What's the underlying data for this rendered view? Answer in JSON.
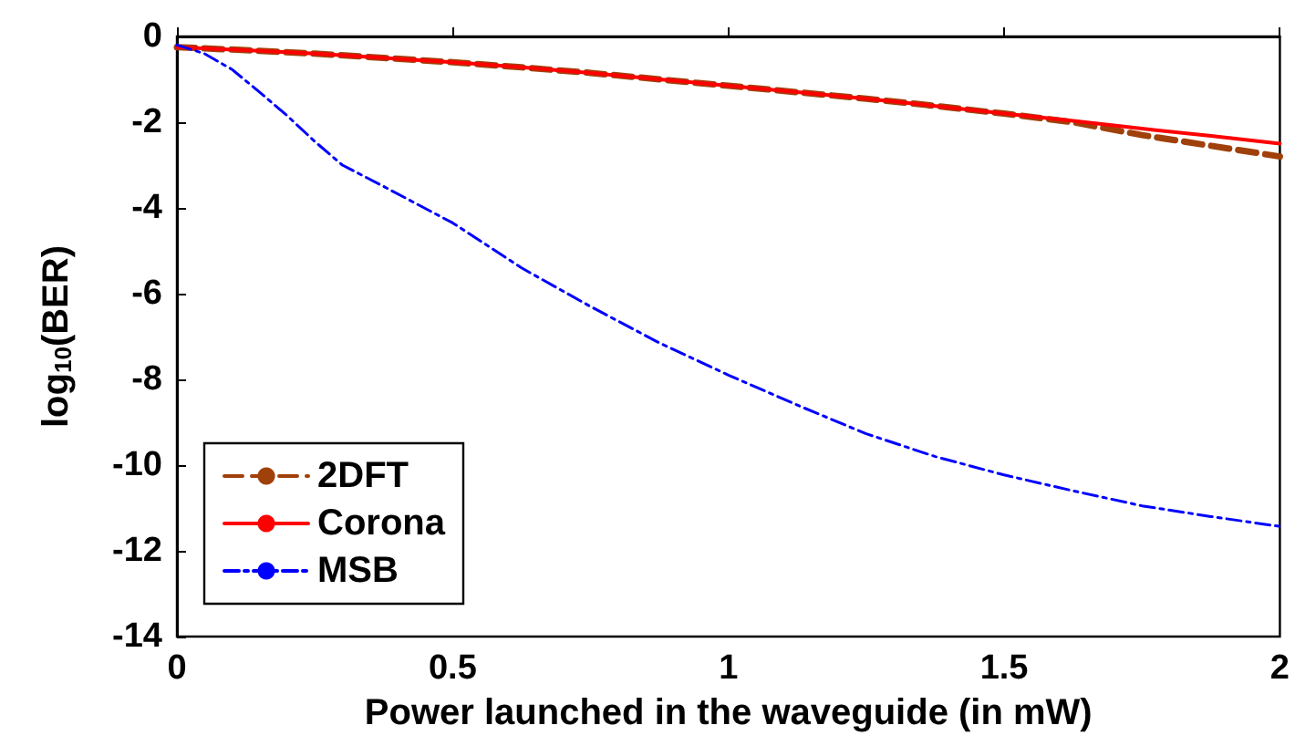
{
  "chart_data": {
    "type": "line",
    "xlabel": "Power launched in the waveguide (in mW)",
    "ylabel": "log$_{10}$(BER)",
    "x": [
      0,
      0.125,
      0.25,
      0.375,
      0.5,
      0.625,
      0.75,
      0.875,
      1,
      1.125,
      1.25,
      1.375,
      1.5,
      1.625,
      1.75,
      1.875,
      2
    ],
    "xlim": [
      0,
      2
    ],
    "xticks": [
      0,
      0.5,
      1,
      1.5,
      2
    ],
    "ylim": [
      -14,
      0
    ],
    "yticks": [
      -14,
      -12,
      -10,
      -8,
      -6,
      -4,
      -2,
      0
    ],
    "series": [
      {
        "name": "2DFT",
        "color": "#a0400a",
        "line_style": "dashed",
        "values": [
          -0.25,
          -0.32,
          -0.4,
          -0.5,
          -0.6,
          -0.72,
          -0.85,
          -1,
          -1.15,
          -1.3,
          -1.45,
          -1.62,
          -1.8,
          -2,
          -2.3,
          -2.55,
          -2.8
        ]
      },
      {
        "name": "Corona",
        "color": "#ff0000",
        "line_style": "solid",
        "values": [
          -0.25,
          -0.32,
          -0.4,
          -0.5,
          -0.6,
          -0.72,
          -0.85,
          -1,
          -1.15,
          -1.3,
          -1.45,
          -1.62,
          -1.8,
          -1.97,
          -2.15,
          -2.32,
          -2.5
        ]
      },
      {
        "name": "MSB",
        "color": "#0000ff",
        "line_style": "dotted",
        "x": [
          0,
          0.05,
          0.1,
          0.15,
          0.2,
          0.25,
          0.3,
          0.375,
          0.5,
          0.625,
          0.75,
          0.875,
          1,
          1.125,
          1.25,
          1.375,
          1.5,
          1.625,
          1.75,
          1.875,
          2
        ],
        "values": [
          -0.2,
          -0.4,
          -0.77,
          -1.3,
          -1.85,
          -2.45,
          -3.0,
          -3.5,
          -4.35,
          -5.4,
          -6.3,
          -7.15,
          -7.9,
          -8.6,
          -9.27,
          -9.8,
          -10.23,
          -10.6,
          -10.95,
          -11.2,
          -11.43
        ]
      }
    ],
    "legend": "bottom left",
    "grid": false
  }
}
